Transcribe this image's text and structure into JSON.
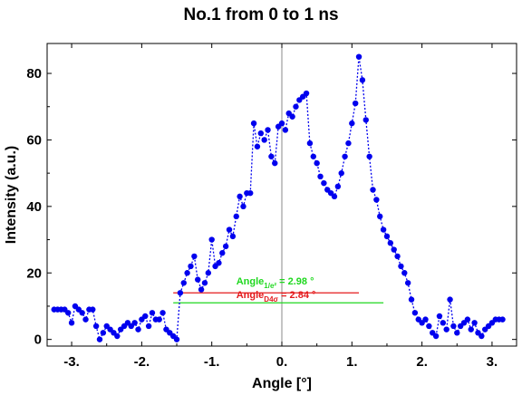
{
  "chart_data": {
    "type": "scatter",
    "title": "No.1  from 0 to 1 ns",
    "xlabel": "Angle [°]",
    "ylabel": "Intensity (a.u.)",
    "xlim": [
      -3.35,
      3.35
    ],
    "ylim": [
      -2,
      89
    ],
    "xticks": [
      -3,
      -2,
      -1,
      0,
      1,
      2,
      3
    ],
    "xtick_labels": [
      "-3.",
      "-2.",
      "-1.",
      "0.",
      "1.",
      "2.",
      "3."
    ],
    "yticks": [
      0,
      20,
      40,
      60,
      80
    ],
    "ytick_labels": [
      "0",
      "20",
      "40",
      "60",
      "80"
    ],
    "grid": false,
    "series": [
      {
        "color": "#0000ee",
        "marker": "circle",
        "line": "dotted",
        "points": [
          [
            -3.25,
            9
          ],
          [
            -3.2,
            9
          ],
          [
            -3.15,
            9
          ],
          [
            -3.1,
            9
          ],
          [
            -3.05,
            8
          ],
          [
            -3.0,
            5
          ],
          [
            -2.95,
            10
          ],
          [
            -2.9,
            9
          ],
          [
            -2.85,
            8
          ],
          [
            -2.8,
            6
          ],
          [
            -2.75,
            9
          ],
          [
            -2.7,
            9
          ],
          [
            -2.65,
            4
          ],
          [
            -2.6,
            0
          ],
          [
            -2.55,
            2
          ],
          [
            -2.5,
            4
          ],
          [
            -2.45,
            3
          ],
          [
            -2.4,
            2
          ],
          [
            -2.35,
            1
          ],
          [
            -2.3,
            3
          ],
          [
            -2.25,
            4
          ],
          [
            -2.2,
            5
          ],
          [
            -2.15,
            4
          ],
          [
            -2.1,
            5
          ],
          [
            -2.05,
            3
          ],
          [
            -2.0,
            6
          ],
          [
            -1.95,
            7
          ],
          [
            -1.9,
            4
          ],
          [
            -1.85,
            8
          ],
          [
            -1.8,
            6
          ],
          [
            -1.75,
            6
          ],
          [
            -1.7,
            8
          ],
          [
            -1.65,
            3
          ],
          [
            -1.6,
            2
          ],
          [
            -1.55,
            1
          ],
          [
            -1.5,
            0
          ],
          [
            -1.45,
            14
          ],
          [
            -1.4,
            17
          ],
          [
            -1.35,
            20
          ],
          [
            -1.3,
            22
          ],
          [
            -1.25,
            25
          ],
          [
            -1.2,
            18
          ],
          [
            -1.15,
            15
          ],
          [
            -1.1,
            17
          ],
          [
            -1.05,
            20
          ],
          [
            -1.0,
            30
          ],
          [
            -0.95,
            22
          ],
          [
            -0.9,
            23
          ],
          [
            -0.85,
            26
          ],
          [
            -0.8,
            28
          ],
          [
            -0.75,
            33
          ],
          [
            -0.7,
            31
          ],
          [
            -0.65,
            37
          ],
          [
            -0.6,
            43
          ],
          [
            -0.55,
            40
          ],
          [
            -0.5,
            44
          ],
          [
            -0.45,
            44
          ],
          [
            -0.4,
            65
          ],
          [
            -0.35,
            58
          ],
          [
            -0.3,
            62
          ],
          [
            -0.25,
            60
          ],
          [
            -0.2,
            63
          ],
          [
            -0.15,
            55
          ],
          [
            -0.1,
            53
          ],
          [
            -0.05,
            64
          ],
          [
            0.0,
            65
          ],
          [
            0.05,
            63
          ],
          [
            0.1,
            68
          ],
          [
            0.15,
            67
          ],
          [
            0.2,
            70
          ],
          [
            0.25,
            72
          ],
          [
            0.3,
            73
          ],
          [
            0.35,
            74
          ],
          [
            0.4,
            59
          ],
          [
            0.45,
            55
          ],
          [
            0.5,
            53
          ],
          [
            0.55,
            49
          ],
          [
            0.6,
            47
          ],
          [
            0.65,
            45
          ],
          [
            0.7,
            44
          ],
          [
            0.75,
            43
          ],
          [
            0.8,
            46
          ],
          [
            0.85,
            50
          ],
          [
            0.9,
            55
          ],
          [
            0.95,
            59
          ],
          [
            1.0,
            65
          ],
          [
            1.05,
            71
          ],
          [
            1.1,
            85
          ],
          [
            1.15,
            78
          ],
          [
            1.2,
            66
          ],
          [
            1.25,
            55
          ],
          [
            1.3,
            45
          ],
          [
            1.35,
            42
          ],
          [
            1.4,
            37
          ],
          [
            1.45,
            33
          ],
          [
            1.5,
            31
          ],
          [
            1.55,
            29
          ],
          [
            1.6,
            27
          ],
          [
            1.65,
            25
          ],
          [
            1.7,
            22
          ],
          [
            1.75,
            20
          ],
          [
            1.8,
            17
          ],
          [
            1.85,
            12
          ],
          [
            1.9,
            8
          ],
          [
            1.95,
            6
          ],
          [
            2.0,
            5
          ],
          [
            2.05,
            6
          ],
          [
            2.1,
            4
          ],
          [
            2.15,
            2
          ],
          [
            2.2,
            1
          ],
          [
            2.25,
            7
          ],
          [
            2.3,
            5
          ],
          [
            2.35,
            3
          ],
          [
            2.4,
            12
          ],
          [
            2.45,
            4
          ],
          [
            2.5,
            2
          ],
          [
            2.55,
            4
          ],
          [
            2.6,
            5
          ],
          [
            2.65,
            6
          ],
          [
            2.7,
            3
          ],
          [
            2.75,
            5
          ],
          [
            2.8,
            2
          ],
          [
            2.85,
            1
          ],
          [
            2.9,
            3
          ],
          [
            2.95,
            4
          ],
          [
            3.0,
            5
          ],
          [
            3.05,
            6
          ],
          [
            3.1,
            6
          ],
          [
            3.15,
            6
          ]
        ]
      }
    ],
    "annotations": [
      {
        "kind": "hline",
        "y": 14,
        "x_range": [
          -1.55,
          1.1
        ],
        "color": "#e41a1c"
      },
      {
        "kind": "hline",
        "y": 11,
        "x_range": [
          -1.55,
          1.45
        ],
        "color": "#1fd81f"
      },
      {
        "kind": "text",
        "main": "Angle",
        "sub": "1/e²",
        "tail": " = 2.98 °",
        "x": -0.65,
        "y": 16.5,
        "color": "#1fd81f"
      },
      {
        "kind": "text",
        "main": "Angle",
        "sub": "D4σ",
        "tail": " = 2.84 °",
        "x": -0.65,
        "y": 12.5,
        "color": "#e41a1c"
      }
    ]
  }
}
